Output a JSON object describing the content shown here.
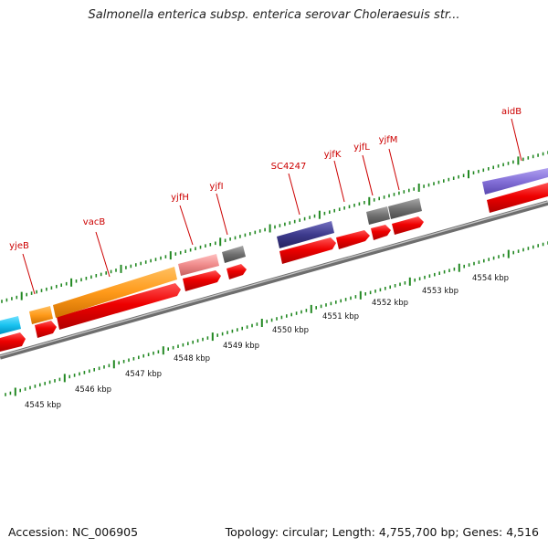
{
  "header": {
    "title": "Salmonella enterica subsp. enterica serovar Choleraesuis str..."
  },
  "footer": {
    "accession": "Accession: NC_006905",
    "summary": "Topology: circular; Length: 4,755,700 bp; Genes: 4,516"
  },
  "colors": {
    "backbone": "#8c8c8c",
    "forward_cds": "#ee0000",
    "tick": "#228822",
    "label": "#cc0000"
  },
  "scale_labels": [
    "4545 kbp",
    "4546 kbp",
    "4547 kbp",
    "4548 kbp",
    "4549 kbp",
    "4550 kbp",
    "4551 kbp",
    "4552 kbp",
    "4553 kbp",
    "4554 kbp"
  ],
  "gene_labels": [
    "yjeB",
    "vacB",
    "yjfH",
    "yjfI",
    "SC4247",
    "yjfK",
    "yjfL",
    "yjfM",
    "aidB"
  ],
  "feature_colors": {
    "cyan": "#19c3f0",
    "orange": "#ff9a1a",
    "pink": "#f08c8c",
    "gray": "#707070",
    "navy": "#3d3a8c",
    "purple": "#8470d8"
  }
}
